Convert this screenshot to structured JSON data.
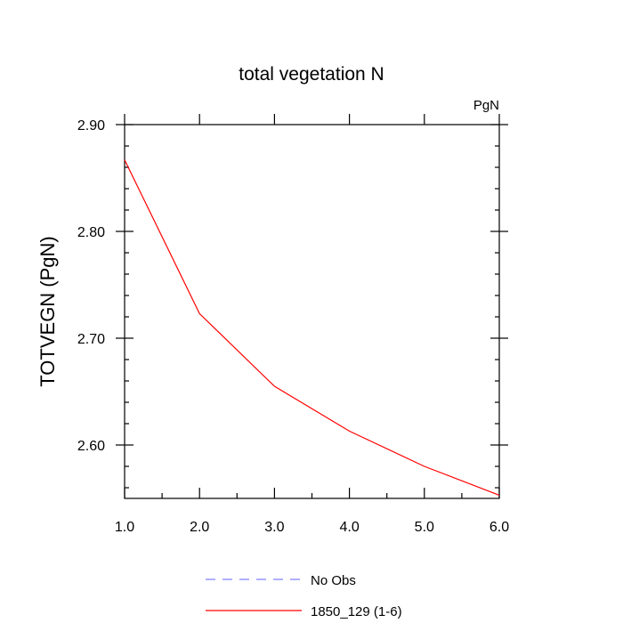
{
  "chart_data": {
    "type": "line",
    "title": "total vegetation N",
    "units_label": "PgN",
    "xlabel": "",
    "ylabel": "TOTVEGN  (PgN)",
    "xlim": [
      1.0,
      6.0
    ],
    "ylim": [
      2.55,
      2.9
    ],
    "x_ticks": [
      "1.0",
      "2.0",
      "3.0",
      "4.0",
      "5.0",
      "6.0"
    ],
    "y_ticks": [
      "2.60",
      "2.70",
      "2.80",
      "2.90"
    ],
    "grid": false,
    "legend_position": "bottom-center",
    "series": [
      {
        "name": "1850_129 (1-6)",
        "color": "#ff0000",
        "dash": "solid",
        "x": [
          1,
          2,
          3,
          4,
          5,
          6
        ],
        "y": [
          2.867,
          2.723,
          2.655,
          2.613,
          2.58,
          2.553
        ]
      }
    ],
    "legend": [
      {
        "label": "No Obs",
        "color": "#8080ff",
        "dash": "dashed"
      },
      {
        "label": "1850_129 (1-6)",
        "color": "#ff0000",
        "dash": "solid"
      }
    ]
  }
}
